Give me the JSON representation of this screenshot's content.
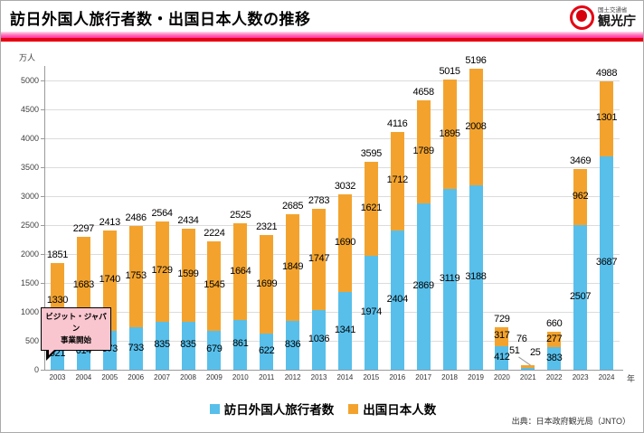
{
  "header": {
    "title": "訪日外国人旅行者数・出国日本人数の推移",
    "logo": {
      "ministry": "国土交通省",
      "agency": "観光庁"
    }
  },
  "chart_data": {
    "type": "bar",
    "stacked": true,
    "title": "訪日外国人旅行者数・出国日本人数の推移",
    "unit_label": "万人",
    "axis_suffix": "年",
    "ylim": [
      0,
      5000
    ],
    "ytick_step": 500,
    "grid": true,
    "legend_position": "bottom",
    "categories": [
      2003,
      2004,
      2005,
      2006,
      2007,
      2008,
      2009,
      2010,
      2011,
      2012,
      2013,
      2014,
      2015,
      2016,
      2017,
      2018,
      2019,
      2020,
      2021,
      2022,
      2023,
      2024
    ],
    "series": [
      {
        "name": "訪日外国人旅行者数",
        "color": "#58BFEB",
        "values": [
          521,
          614,
          673,
          733,
          835,
          835,
          679,
          861,
          622,
          836,
          1036,
          1341,
          1974,
          2404,
          2869,
          3119,
          3188,
          412,
          25,
          383,
          2507,
          3687
        ]
      },
      {
        "name": "出国日本人数",
        "color": "#F3A32D",
        "values": [
          1330,
          1683,
          1740,
          1753,
          1729,
          1599,
          1545,
          1664,
          1699,
          1849,
          1747,
          1690,
          1621,
          1712,
          1789,
          1895,
          2008,
          317,
          51,
          277,
          962,
          1301
        ]
      }
    ],
    "totals": [
      1851,
      2297,
      2413,
      2486,
      2564,
      2434,
      2224,
      2525,
      2321,
      2685,
      2783,
      3032,
      3595,
      4116,
      4658,
      5015,
      5196,
      729,
      76,
      660,
      3469,
      4988
    ],
    "annotation": {
      "line1": "ビジット・ジャパン",
      "line2": "事業開始",
      "target_year": 2003
    }
  },
  "source": "出典：日本政府観光局（JNTO）",
  "colors": {
    "visitors": "#58BFEB",
    "departures": "#F3A32D",
    "title_underline_pink": "#FF2F9E",
    "title_underline_red": "#E60012",
    "annotation_bg": "#F9C6CF"
  }
}
